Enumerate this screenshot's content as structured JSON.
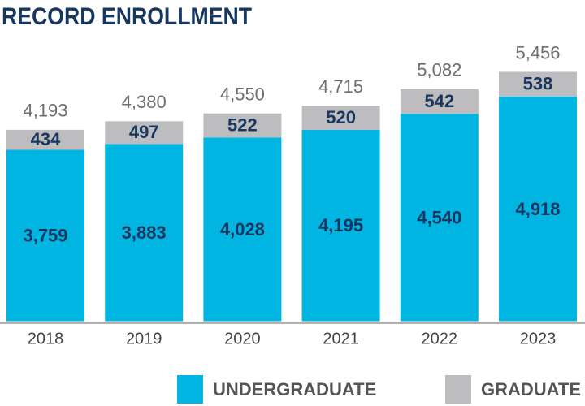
{
  "chart_data": {
    "type": "stacked_bar",
    "title": "RECORD ENROLLMENT",
    "categories": [
      "2018",
      "2019",
      "2020",
      "2021",
      "2022",
      "2023"
    ],
    "series": [
      {
        "name": "UNDERGRADUATE",
        "color": "#00b5e2",
        "values": [
          3759,
          3883,
          4028,
          4195,
          4540,
          4918
        ],
        "value_labels": [
          "3,759",
          "3,883",
          "4,028",
          "4,195",
          "4,540",
          "4,918"
        ]
      },
      {
        "name": "GRADUATE",
        "color": "#bdbcbf",
        "values": [
          434,
          497,
          522,
          520,
          542,
          538
        ]
      }
    ],
    "totals": [
      4193,
      4380,
      4550,
      4715,
      5082,
      5456
    ],
    "total_labels": [
      "4,193",
      "4,380",
      "4,550",
      "4,715",
      "5,082",
      "5,456"
    ],
    "ylim": [
      0,
      5500
    ]
  }
}
